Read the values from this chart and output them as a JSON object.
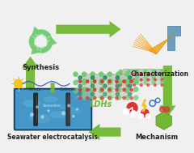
{
  "bg_color": "#f0f0f0",
  "labels": {
    "synthesis": "Synthesis",
    "characterization": "Characterization",
    "ldhs": "LDHs",
    "mechanism": "Mechanism",
    "seawater": "Seawater electrocatalysis"
  },
  "label_colors": {
    "synthesis": "#222222",
    "characterization": "#222222",
    "ldhs": "#72b832",
    "mechanism": "#222222",
    "seawater": "#222222"
  },
  "arrow_color": "#72b832",
  "hex_color": "#72cc72",
  "ldh_gray": "#b0b8b0",
  "ldh_green": "#72cc72",
  "ldh_red": "#dd3333",
  "ldh_blue": "#3366cc",
  "water_dark": "#2a7ab0",
  "water_mid": "#4a9ece",
  "water_light": "#80c8e8",
  "sun_color": "#f5c518",
  "xray_color": "#f5a020",
  "xray_cone_color": "#f0b030",
  "instrument_blue": "#6aa0be",
  "instrument_dark": "#5080a0",
  "mech_red": "#dd3333",
  "mech_blue": "#4477cc",
  "mech_green": "#72b832",
  "mech_yellow": "#f5c518"
}
